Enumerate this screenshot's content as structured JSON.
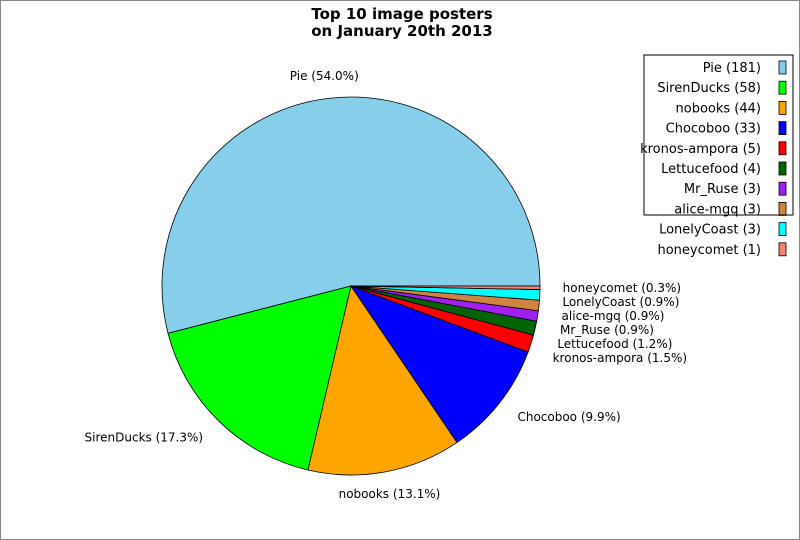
{
  "chart_data": {
    "type": "pie",
    "title": [
      "Top 10 image posters",
      "on January 20th 2013"
    ],
    "start_angle_deg": 0,
    "direction": "counterclockwise",
    "legend_position": "top-right",
    "slices": [
      {
        "name": "Pie",
        "value": 181,
        "percent_label": "Pie (54.0%)",
        "legend_label": "Pie (181)",
        "color": "#87CEEB"
      },
      {
        "name": "SirenDucks",
        "value": 58,
        "percent_label": "SirenDucks (17.3%)",
        "legend_label": "SirenDucks (58)",
        "color": "#00FF00"
      },
      {
        "name": "nobooks",
        "value": 44,
        "percent_label": "nobooks (13.1%)",
        "legend_label": "nobooks (44)",
        "color": "#FFA500"
      },
      {
        "name": "Chocoboo",
        "value": 33,
        "percent_label": "Chocoboo (9.9%)",
        "legend_label": "Chocoboo (33)",
        "color": "#0000FF"
      },
      {
        "name": "kronos-ampora",
        "value": 5,
        "percent_label": "kronos-ampora (1.5%)",
        "legend_label": "kronos-ampora (5)",
        "color": "#FF0000"
      },
      {
        "name": "Lettucefood",
        "value": 4,
        "percent_label": "Lettucefood (1.2%)",
        "legend_label": "Lettucefood (4)",
        "color": "#006400"
      },
      {
        "name": "Mr_Ruse",
        "value": 3,
        "percent_label": "Mr_Ruse (0.9%)",
        "legend_label": "Mr_Ruse (3)",
        "color": "#A020F0"
      },
      {
        "name": "alice-mgq",
        "value": 3,
        "percent_label": "alice-mgq (0.9%)",
        "legend_label": "alice-mgq (3)",
        "color": "#CD853F"
      },
      {
        "name": "LonelyCoast",
        "value": 3,
        "percent_label": "LonelyCoast (0.9%)",
        "legend_label": "LonelyCoast (3)",
        "color": "#00FFFF"
      },
      {
        "name": "honeycomet",
        "value": 1,
        "percent_label": "honeycomet (0.3%)",
        "legend_label": "honeycomet (1)",
        "color": "#FA8072"
      }
    ]
  }
}
